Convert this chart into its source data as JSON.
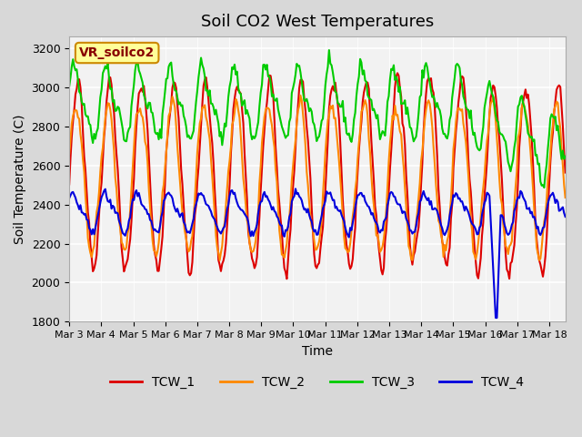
{
  "title": "Soil CO2 West Temperatures",
  "xlabel": "Time",
  "ylabel": "Soil Temperature (C)",
  "ylim": [
    1800,
    3260
  ],
  "xlim": [
    0,
    15.5
  ],
  "xtick_labels": [
    "Mar 3",
    "Mar 4",
    "Mar 5",
    "Mar 6",
    "Mar 7",
    "Mar 8",
    "Mar 9",
    "Mar 10",
    "Mar 11",
    "Mar 12",
    "Mar 13",
    "Mar 14",
    "Mar 15",
    "Mar 16",
    "Mar 17",
    "Mar 18"
  ],
  "xtick_positions": [
    0,
    1,
    2,
    3,
    4,
    5,
    6,
    7,
    8,
    9,
    10,
    11,
    12,
    13,
    14,
    15
  ],
  "ytick_positions": [
    1800,
    2000,
    2200,
    2400,
    2600,
    2800,
    3000,
    3200
  ],
  "bg_color": "#e8e8e8",
  "plot_bg_color": "#f0f0f0",
  "grid_color": "#ffffff",
  "annotation_text": "VR_soilco2",
  "annotation_bg": "#ffff99",
  "annotation_border": "#cc8800",
  "series": {
    "TCW_1": {
      "color": "#dd0000",
      "lw": 1.5
    },
    "TCW_2": {
      "color": "#ff8800",
      "lw": 1.5
    },
    "TCW_3": {
      "color": "#00cc00",
      "lw": 1.5
    },
    "TCW_4": {
      "color": "#0000dd",
      "lw": 1.5
    }
  },
  "legend_colors": {
    "TCW_1": "#dd0000",
    "TCW_2": "#ff8800",
    "TCW_3": "#00cc00",
    "TCW_4": "#0000dd"
  }
}
